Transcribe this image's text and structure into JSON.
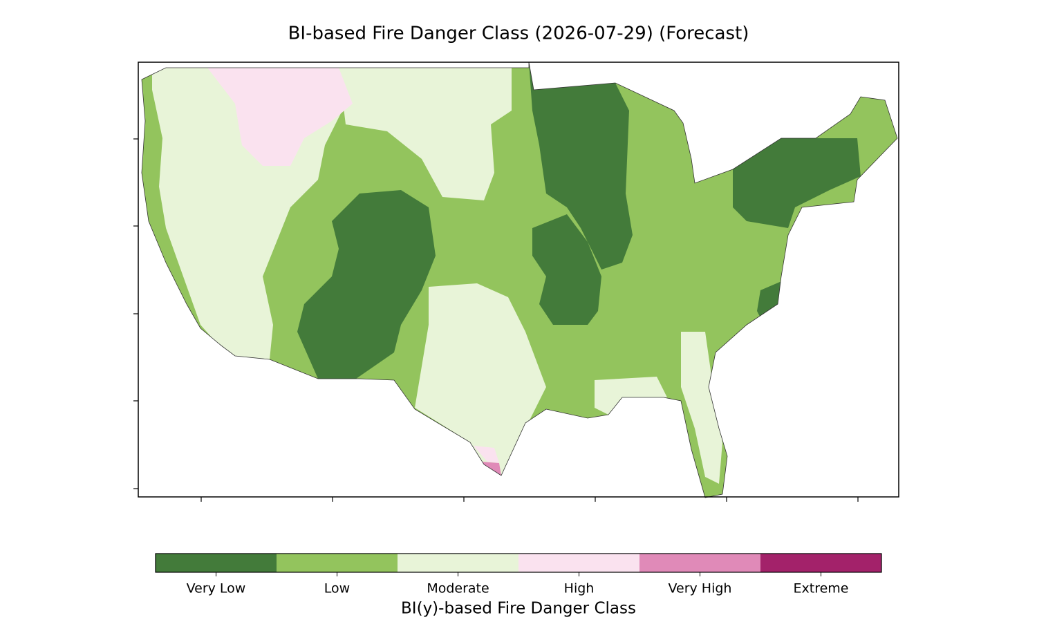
{
  "title": "BI-based Fire Danger Class (2026-07-29) (Forecast)",
  "colorbar": {
    "label": "BI(y)-based Fire Danger Class",
    "classes": [
      {
        "name": "Very Low",
        "color": "#437b3a"
      },
      {
        "name": "Low",
        "color": "#93c45d"
      },
      {
        "name": "Moderate",
        "color": "#e8f4d8"
      },
      {
        "name": "High",
        "color": "#fae2ef"
      },
      {
        "name": "Very High",
        "color": "#e08ab8"
      },
      {
        "name": "Extreme",
        "color": "#a3226a"
      }
    ]
  }
}
